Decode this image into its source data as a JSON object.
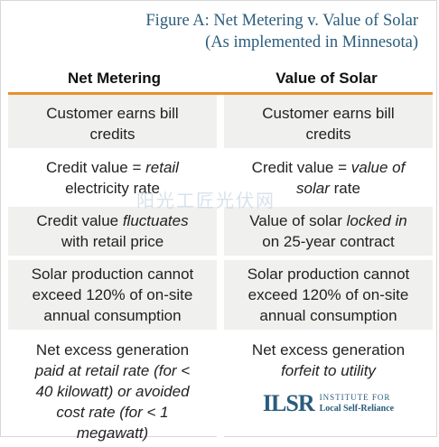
{
  "title": {
    "line1": "Figure A: Net Metering v. Value of Solar",
    "line2": "(As implemented in Minnesota)"
  },
  "columns": [
    "Net Metering",
    "Value of Solar"
  ],
  "rows": [
    {
      "left": [
        "Customer earns bill",
        "credits"
      ],
      "right": [
        "Customer earns bill",
        "credits"
      ]
    },
    {
      "left_a": "Credit value = ",
      "left_em": "retail",
      "left_b": "electricity rate",
      "right_a": "Credit value = ",
      "right_em": "value of",
      "right_em2": "solar",
      "right_b": " rate"
    },
    {
      "left_a": "Credit value ",
      "left_em": "fluctuates",
      "left_b": "with retail price",
      "right_a": "Value of solar ",
      "right_em": "locked in",
      "right_b": "on 25-year contract"
    },
    {
      "left": [
        "Solar production cannot",
        "exceed 120% of on-site",
        "annual consumption"
      ],
      "right": [
        "Solar production cannot",
        "exceed 120% of on-site",
        "annual consumption"
      ]
    },
    {
      "left_a": "Net excess generation",
      "left_em": [
        "paid at retail rate (for <",
        "40 kilowatt) or avoided",
        "cost rate (for < 1",
        "megawatt)"
      ],
      "right_a": "Net excess generation",
      "right_em": "forfeit to utility"
    }
  ],
  "logo": {
    "mark": "ILSR",
    "line1": "INSTITUTE FOR",
    "line2": "Local Self-Reliance"
  },
  "watermark": "阳光工匠光伏网"
}
